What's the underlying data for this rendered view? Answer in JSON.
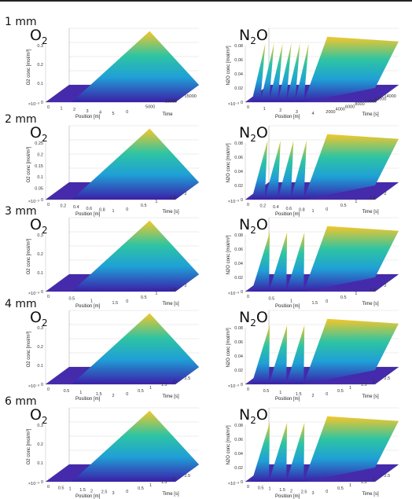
{
  "rows": [
    {
      "label": "1 mm",
      "o2": {
        "title": "O",
        "sub": "2",
        "zlabel": "O2 conc [mol/m³]",
        "xlabel": "Position [m]",
        "ylabel": "Time",
        "exp": "×10⁻³",
        "xticks": [
          "0",
          "1",
          "2",
          "3",
          "4",
          "5"
        ],
        "yticks": [
          "0",
          "5000",
          "10000",
          "15000"
        ],
        "zticks": [
          "0",
          "0.1",
          "0.2",
          "0.3"
        ]
      },
      "n2o": {
        "title": "N",
        "sub": "2",
        "suffix": "O",
        "zlabel": "N2O conc [mol/m³]",
        "xlabel": "Position [m]",
        "ylabel": "Time [s]",
        "exp": "×10⁻³",
        "xticks": [
          "0",
          "1",
          "2",
          "3",
          "4"
        ],
        "yticks": [
          "2000",
          "4000",
          "6000",
          "8000",
          "10000",
          "12000",
          "14000"
        ],
        "zticks": [
          "0",
          "0.02",
          "0.04",
          "0.06",
          "0.08"
        ]
      }
    },
    {
      "label": "2 mm",
      "o2": {
        "title": "O",
        "sub": "2",
        "zlabel": "O2 conc [mol/m³]",
        "xlabel": "Position [m]",
        "ylabel": "Time [s]",
        "exp": "×10⁻³",
        "xticks": [
          "0",
          "0.2",
          "0.4",
          "0.6",
          "0.8",
          "1"
        ],
        "yticks": [
          "0",
          "0.5",
          "1",
          "1.5",
          "2"
        ],
        "zticks": [
          "0",
          "0.05",
          "0.1",
          "0.15",
          "0.2",
          "0.25"
        ]
      },
      "n2o": {
        "title": "N",
        "sub": "2",
        "suffix": "O",
        "zlabel": "N2O conc [mol/m³]",
        "xlabel": "Position [m]",
        "ylabel": "Time [s]",
        "exp": "×10⁻³",
        "xticks": [
          "0",
          "0.2",
          "0.4",
          "0.6",
          "0.8",
          "1"
        ],
        "yticks": [
          "0",
          "0.5",
          "1",
          "1.5",
          "2"
        ],
        "zticks": [
          "0",
          "0.02",
          "0.04",
          "0.06",
          "0.08"
        ]
      }
    },
    {
      "label": "3 mm",
      "o2": {
        "title": "O",
        "sub": "2",
        "zlabel": "O2 conc [mol/m³]",
        "xlabel": "Position [m]",
        "ylabel": "Time [s]",
        "exp": "×10⁻³",
        "xticks": [
          "0",
          "0.5",
          "1",
          "1.5"
        ],
        "yticks": [
          "0",
          "0.5",
          "1",
          "1.5",
          "2"
        ],
        "zticks": [
          "0",
          "0.1",
          "0.2",
          "0.3"
        ]
      },
      "n2o": {
        "title": "N",
        "sub": "2",
        "suffix": "O",
        "zlabel": "N2O conc [mol/m³]",
        "xlabel": "Position [m]",
        "ylabel": "Time [s]",
        "exp": "×10⁻³",
        "xticks": [
          "0",
          "0.5",
          "1",
          "1.5"
        ],
        "yticks": [
          "0",
          "0.5",
          "1",
          "1.5",
          "2"
        ],
        "zticks": [
          "0",
          "0.02",
          "0.04",
          "0.06",
          "0.08"
        ]
      }
    },
    {
      "label": "4 mm",
      "o2": {
        "title": "O",
        "sub": "2",
        "zlabel": "O2 conc [mol/m³]",
        "xlabel": "Position [m]",
        "ylabel": "Time [s]",
        "exp": "×10⁻³",
        "xticks": [
          "0",
          "0.5",
          "1",
          "1.5",
          "2"
        ],
        "yticks": [
          "0",
          "0.5",
          "1",
          "1.5",
          "2",
          "2.5"
        ],
        "zticks": [
          "0",
          "0.1",
          "0.2",
          "0.3"
        ]
      },
      "n2o": {
        "title": "N",
        "sub": "2",
        "suffix": "O",
        "zlabel": "N2O conc [mol/m³]",
        "xlabel": "Position [m]",
        "ylabel": "Time [s]",
        "exp": "×10⁻³",
        "xticks": [
          "0",
          "0.5",
          "1",
          "1.5",
          "2"
        ],
        "yticks": [
          "0",
          "0.5",
          "1",
          "1.5",
          "2",
          "2.5"
        ],
        "zticks": [
          "0",
          "0.02",
          "0.04",
          "0.06",
          "0.08"
        ]
      }
    },
    {
      "label": "6 mm",
      "o2": {
        "title": "O",
        "sub": "2",
        "zlabel": "O2 conc [mol/m³]",
        "xlabel": "Position [m]",
        "ylabel": "Time [s]",
        "exp": "×10⁻³",
        "xticks": [
          "0",
          "0.5",
          "1",
          "1.5",
          "2",
          "2.5",
          "3"
        ],
        "yticks": [
          "0",
          "0.5",
          "1",
          "1.5",
          "2",
          "2.5"
        ],
        "zticks": [
          "0",
          "0.1",
          "0.2",
          "0.3"
        ]
      },
      "n2o": {
        "title": "N",
        "sub": "2",
        "suffix": "O",
        "zlabel": "N2O conc [mol/m³]",
        "xlabel": "Position [m]",
        "ylabel": "Time [s]",
        "exp": "×10⁻³",
        "xticks": [
          "0",
          "0.5",
          "1",
          "1.5",
          "2",
          "2.5",
          "3"
        ],
        "yticks": [
          "0",
          "0.5",
          "1",
          "1.5",
          "2",
          "2.5"
        ],
        "zticks": [
          "0",
          "0.02",
          "0.04",
          "0.06",
          "0.08"
        ]
      }
    }
  ],
  "colors": {
    "low": "#3b1fa8",
    "mid": "#1fa0d6",
    "high": "#f4c62a",
    "teal": "#2ec4a3"
  },
  "chart_data": [
    {
      "type": "surface",
      "panel": "1 mm O2",
      "shape": "ramp",
      "peak": 0.3
    },
    {
      "type": "surface",
      "panel": "1 mm N2O",
      "shape": "pulses+plateau",
      "pulses": 6,
      "peak": 0.08
    },
    {
      "type": "surface",
      "panel": "2 mm O2",
      "shape": "ramp",
      "peak": 0.25
    },
    {
      "type": "surface",
      "panel": "2 mm N2O",
      "shape": "pulses+plateau",
      "pulses": 4,
      "peak": 0.08
    },
    {
      "type": "surface",
      "panel": "3 mm O2",
      "shape": "peak",
      "peak": 0.3
    },
    {
      "type": "surface",
      "panel": "3 mm N2O",
      "shape": "pulses+plateau",
      "pulses": 3,
      "peak": 0.08
    },
    {
      "type": "surface",
      "panel": "4 mm O2",
      "shape": "peak",
      "peak": 0.3
    },
    {
      "type": "surface",
      "panel": "4 mm N2O",
      "shape": "pulses+plateau",
      "pulses": 3,
      "peak": 0.08
    },
    {
      "type": "surface",
      "panel": "6 mm O2",
      "shape": "peak",
      "peak": 0.3
    },
    {
      "type": "surface",
      "panel": "6 mm N2O",
      "shape": "pulses+plateau",
      "pulses": 3,
      "peak": 0.08
    }
  ]
}
